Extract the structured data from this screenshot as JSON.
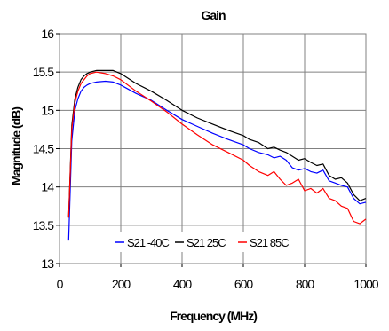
{
  "chart_data": {
    "type": "line",
    "title": "Gain",
    "xlabel": "Frequency (MHz)",
    "ylabel": "Magnitude (dB)",
    "xlim": [
      0,
      1000
    ],
    "ylim": [
      13,
      16
    ],
    "xticks": [
      0,
      200,
      400,
      600,
      800,
      1000
    ],
    "yticks": [
      13,
      13.5,
      14,
      14.5,
      15,
      15.5,
      16
    ],
    "grid": true,
    "legend_position": "bottom-center",
    "x": [
      30,
      40,
      50,
      60,
      70,
      80,
      90,
      100,
      120,
      150,
      175,
      200,
      250,
      300,
      350,
      400,
      450,
      500,
      550,
      600,
      620,
      650,
      680,
      700,
      720,
      740,
      760,
      780,
      800,
      820,
      840,
      860,
      880,
      900,
      920,
      940,
      960,
      980,
      1000
    ],
    "series": [
      {
        "name": "S21 -40C",
        "color": "#0000ff",
        "values": [
          13.3,
          14.6,
          15.0,
          15.15,
          15.25,
          15.3,
          15.33,
          15.35,
          15.37,
          15.38,
          15.37,
          15.33,
          15.22,
          15.13,
          15.0,
          14.88,
          14.79,
          14.7,
          14.62,
          14.55,
          14.5,
          14.45,
          14.42,
          14.38,
          14.4,
          14.35,
          14.25,
          14.22,
          14.24,
          14.2,
          14.18,
          14.22,
          14.08,
          14.05,
          14.02,
          14.0,
          13.85,
          13.78,
          13.8
        ]
      },
      {
        "name": "S21 25C",
        "color": "#000000",
        "values": [
          13.6,
          14.8,
          15.15,
          15.3,
          15.4,
          15.45,
          15.48,
          15.5,
          15.52,
          15.52,
          15.52,
          15.48,
          15.35,
          15.25,
          15.13,
          15.0,
          14.9,
          14.82,
          14.74,
          14.67,
          14.62,
          14.58,
          14.5,
          14.52,
          14.48,
          14.45,
          14.4,
          14.35,
          14.37,
          14.32,
          14.28,
          14.3,
          14.15,
          14.1,
          14.12,
          14.05,
          13.9,
          13.82,
          13.85
        ]
      },
      {
        "name": "S21 85C",
        "color": "#ff0000",
        "values": [
          13.6,
          14.75,
          15.1,
          15.25,
          15.35,
          15.4,
          15.45,
          15.48,
          15.5,
          15.48,
          15.45,
          15.4,
          15.25,
          15.12,
          14.98,
          14.82,
          14.68,
          14.55,
          14.45,
          14.35,
          14.28,
          14.2,
          14.15,
          14.2,
          14.1,
          14.02,
          14.05,
          14.1,
          13.95,
          13.98,
          13.92,
          13.98,
          13.85,
          13.82,
          13.75,
          13.72,
          13.55,
          13.52,
          13.58
        ]
      }
    ]
  }
}
